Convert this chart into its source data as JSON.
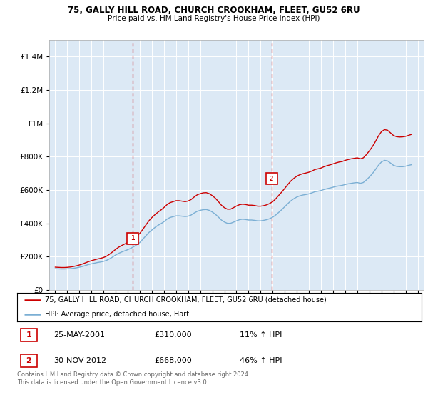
{
  "title1": "75, GALLY HILL ROAD, CHURCH CROOKHAM, FLEET, GU52 6RU",
  "title2": "Price paid vs. HM Land Registry's House Price Index (HPI)",
  "legend_red": "75, GALLY HILL ROAD, CHURCH CROOKHAM, FLEET, GU52 6RU (detached house)",
  "legend_blue": "HPI: Average price, detached house, Hart",
  "footer": "Contains HM Land Registry data © Crown copyright and database right 2024.\nThis data is licensed under the Open Government Licence v3.0.",
  "purchase1": {
    "label": "1",
    "date": "25-MAY-2001",
    "price": 310000,
    "hpi_pct": "11%",
    "direction": "↑"
  },
  "purchase2": {
    "label": "2",
    "date": "30-NOV-2012",
    "price": 668000,
    "hpi_pct": "46%",
    "direction": "↑"
  },
  "purchase1_x": 2001.4,
  "purchase2_x": 2012.9,
  "red_color": "#cc0000",
  "blue_color": "#7bafd4",
  "background_color": "#dce9f5",
  "grid_color": "#ffffff",
  "ylim": [
    0,
    1500000
  ],
  "xlim": [
    1994.5,
    2025.5
  ],
  "hpi_data": {
    "years": [
      1995.0,
      1995.25,
      1995.5,
      1995.75,
      1996.0,
      1996.25,
      1996.5,
      1996.75,
      1997.0,
      1997.25,
      1997.5,
      1997.75,
      1998.0,
      1998.25,
      1998.5,
      1998.75,
      1999.0,
      1999.25,
      1999.5,
      1999.75,
      2000.0,
      2000.25,
      2000.5,
      2000.75,
      2001.0,
      2001.25,
      2001.5,
      2001.75,
      2002.0,
      2002.25,
      2002.5,
      2002.75,
      2003.0,
      2003.25,
      2003.5,
      2003.75,
      2004.0,
      2004.25,
      2004.5,
      2004.75,
      2005.0,
      2005.25,
      2005.5,
      2005.75,
      2006.0,
      2006.25,
      2006.5,
      2006.75,
      2007.0,
      2007.25,
      2007.5,
      2007.75,
      2008.0,
      2008.25,
      2008.5,
      2008.75,
      2009.0,
      2009.25,
      2009.5,
      2009.75,
      2010.0,
      2010.25,
      2010.5,
      2010.75,
      2011.0,
      2011.25,
      2011.5,
      2011.75,
      2012.0,
      2012.25,
      2012.5,
      2012.75,
      2013.0,
      2013.25,
      2013.5,
      2013.75,
      2014.0,
      2014.25,
      2014.5,
      2014.75,
      2015.0,
      2015.25,
      2015.5,
      2015.75,
      2016.0,
      2016.25,
      2016.5,
      2016.75,
      2017.0,
      2017.25,
      2017.5,
      2017.75,
      2018.0,
      2018.25,
      2018.5,
      2018.75,
      2019.0,
      2019.25,
      2019.5,
      2019.75,
      2020.0,
      2020.25,
      2020.5,
      2020.75,
      2021.0,
      2021.25,
      2021.5,
      2021.75,
      2022.0,
      2022.25,
      2022.5,
      2022.75,
      2023.0,
      2023.25,
      2023.5,
      2023.75,
      2024.0,
      2024.25,
      2024.5
    ],
    "values": [
      128000,
      127000,
      126000,
      126000,
      127000,
      128000,
      130000,
      133000,
      137000,
      141000,
      147000,
      153000,
      157000,
      161000,
      165000,
      168000,
      172000,
      178000,
      187000,
      198000,
      210000,
      220000,
      228000,
      235000,
      242000,
      250000,
      260000,
      272000,
      285000,
      305000,
      325000,
      345000,
      360000,
      375000,
      388000,
      398000,
      410000,
      425000,
      435000,
      440000,
      445000,
      445000,
      443000,
      441000,
      443000,
      450000,
      462000,
      472000,
      478000,
      482000,
      483000,
      478000,
      468000,
      455000,
      438000,
      420000,
      408000,
      400000,
      400000,
      407000,
      415000,
      422000,
      425000,
      423000,
      420000,
      420000,
      418000,
      415000,
      415000,
      418000,
      422000,
      428000,
      437000,
      450000,
      466000,
      482000,
      500000,
      518000,
      535000,
      548000,
      558000,
      565000,
      570000,
      573000,
      577000,
      583000,
      590000,
      593000,
      597000,
      603000,
      608000,
      612000,
      617000,
      622000,
      625000,
      628000,
      633000,
      637000,
      640000,
      643000,
      645000,
      640000,
      645000,
      660000,
      678000,
      698000,
      722000,
      748000,
      768000,
      778000,
      775000,
      762000,
      748000,
      742000,
      740000,
      740000,
      743000,
      748000,
      752000
    ]
  },
  "red_data": {
    "years": [
      1995.0,
      1995.25,
      1995.5,
      1995.75,
      1996.0,
      1996.25,
      1996.5,
      1996.75,
      1997.0,
      1997.25,
      1997.5,
      1997.75,
      1998.0,
      1998.25,
      1998.5,
      1998.75,
      1999.0,
      1999.25,
      1999.5,
      1999.75,
      2000.0,
      2000.25,
      2000.5,
      2000.75,
      2001.0,
      2001.25,
      2001.5,
      2001.75,
      2002.0,
      2002.25,
      2002.5,
      2002.75,
      2003.0,
      2003.25,
      2003.5,
      2003.75,
      2004.0,
      2004.25,
      2004.5,
      2004.75,
      2005.0,
      2005.25,
      2005.5,
      2005.75,
      2006.0,
      2006.25,
      2006.5,
      2006.75,
      2007.0,
      2007.25,
      2007.5,
      2007.75,
      2008.0,
      2008.25,
      2008.5,
      2008.75,
      2009.0,
      2009.25,
      2009.5,
      2009.75,
      2010.0,
      2010.25,
      2010.5,
      2010.75,
      2011.0,
      2011.25,
      2011.5,
      2011.75,
      2012.0,
      2012.25,
      2012.5,
      2012.75,
      2013.0,
      2013.25,
      2013.5,
      2013.75,
      2014.0,
      2014.25,
      2014.5,
      2014.75,
      2015.0,
      2015.25,
      2015.5,
      2015.75,
      2016.0,
      2016.25,
      2016.5,
      2016.75,
      2017.0,
      2017.25,
      2017.5,
      2017.75,
      2018.0,
      2018.25,
      2018.5,
      2018.75,
      2019.0,
      2019.25,
      2019.5,
      2019.75,
      2020.0,
      2020.25,
      2020.5,
      2020.75,
      2021.0,
      2021.25,
      2021.5,
      2021.75,
      2022.0,
      2022.25,
      2022.5,
      2022.75,
      2023.0,
      2023.25,
      2023.5,
      2023.75,
      2024.0,
      2024.25,
      2024.5
    ],
    "values": [
      137000,
      136000,
      135000,
      135000,
      136000,
      138000,
      141000,
      145000,
      150000,
      156000,
      163000,
      170000,
      176000,
      181000,
      186000,
      190000,
      195000,
      203000,
      215000,
      229000,
      244000,
      257000,
      267000,
      276000,
      285000,
      295000,
      308000,
      323000,
      340000,
      364000,
      390000,
      415000,
      435000,
      452000,
      467000,
      480000,
      495000,
      512000,
      524000,
      530000,
      536000,
      536000,
      533000,
      530000,
      534000,
      543000,
      558000,
      571000,
      578000,
      583000,
      584000,
      578000,
      566000,
      551000,
      531000,
      509000,
      494000,
      485000,
      485000,
      494000,
      504000,
      512000,
      515000,
      513000,
      509000,
      509000,
      507000,
      503000,
      503000,
      506000,
      511000,
      519000,
      530000,
      547000,
      568000,
      588000,
      610000,
      633000,
      654000,
      670000,
      683000,
      692000,
      698000,
      702000,
      707000,
      714000,
      723000,
      727000,
      732000,
      740000,
      746000,
      751000,
      757000,
      763000,
      768000,
      771000,
      778000,
      783000,
      787000,
      790000,
      793000,
      787000,
      793000,
      812000,
      835000,
      860000,
      890000,
      924000,
      950000,
      962000,
      959000,
      943000,
      927000,
      920000,
      918000,
      919000,
      922000,
      928000,
      934000
    ]
  }
}
